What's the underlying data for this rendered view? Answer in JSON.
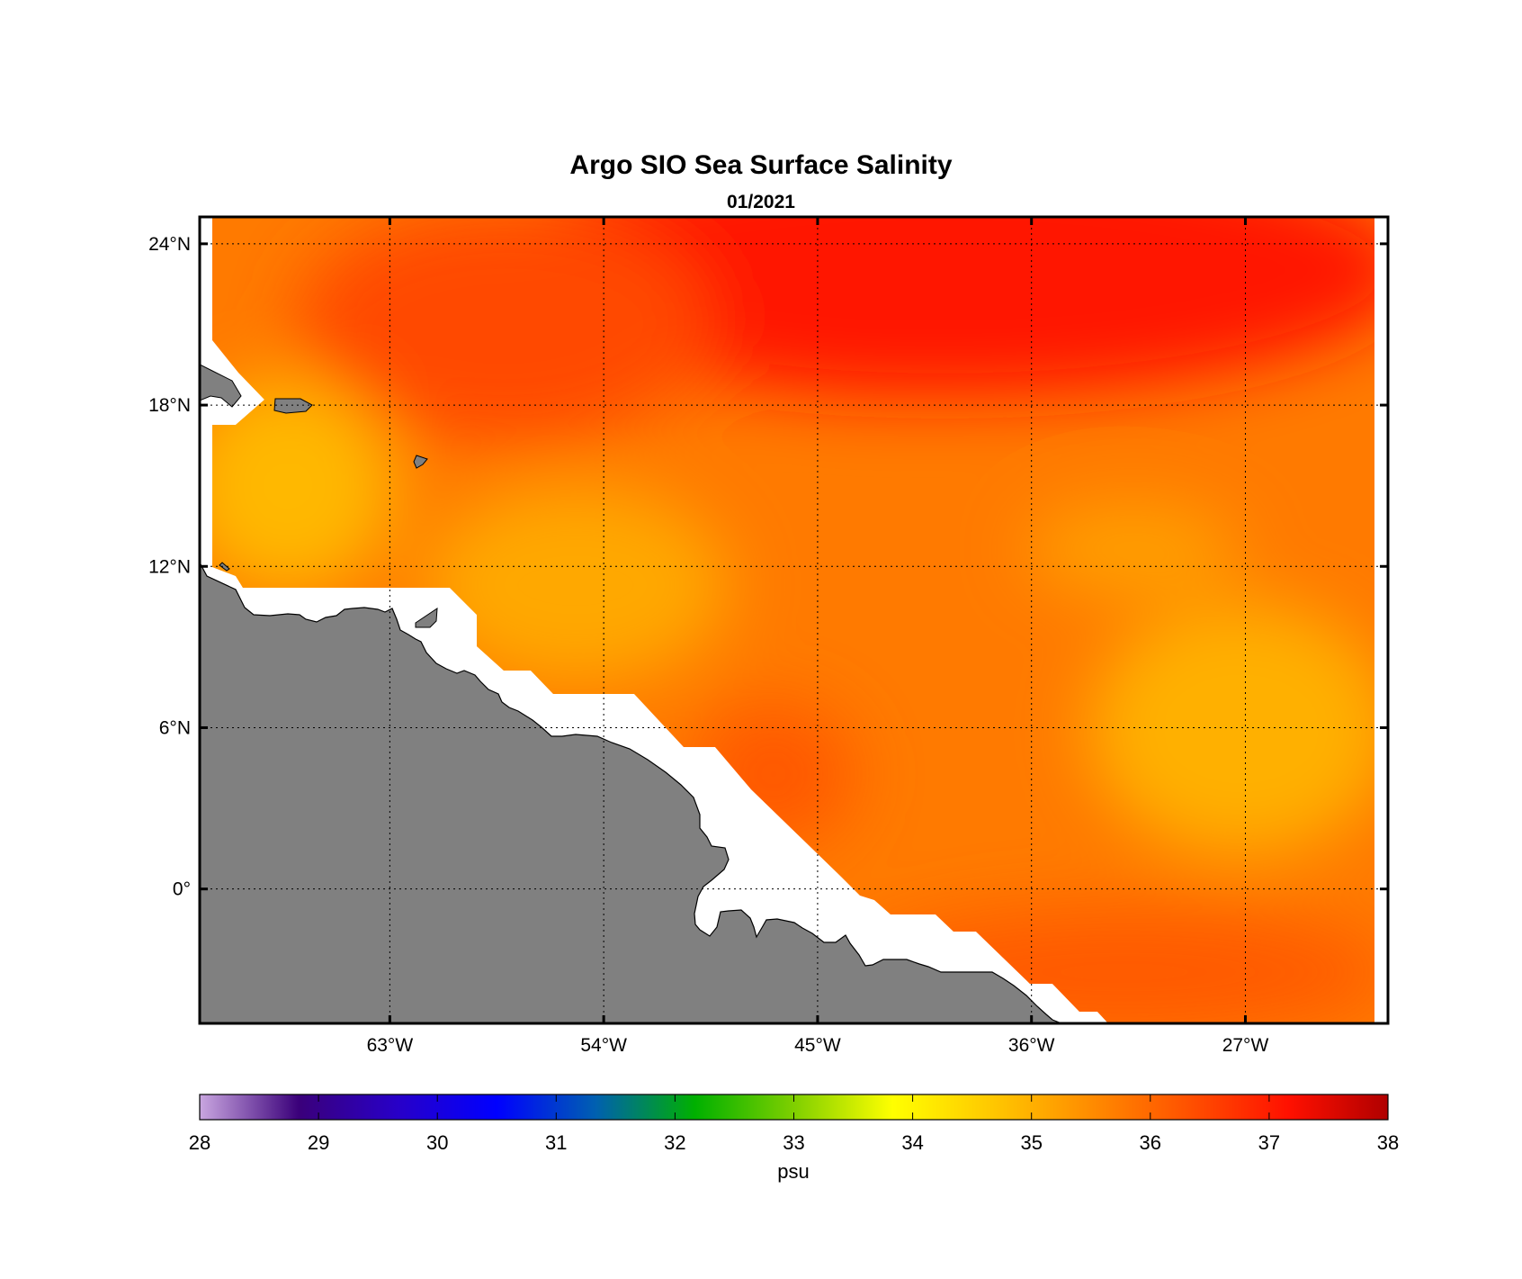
{
  "title": "Argo SIO Sea Surface Salinity",
  "subtitle": "01/2021",
  "map": {
    "lon_range": [
      -71,
      -21
    ],
    "lat_range": [
      -5,
      25
    ],
    "lon_ticks": [
      {
        "value": -63,
        "label": "63°W"
      },
      {
        "value": -54,
        "label": "54°W"
      },
      {
        "value": -45,
        "label": "45°W"
      },
      {
        "value": -36,
        "label": "36°W"
      },
      {
        "value": -27,
        "label": "27°W"
      }
    ],
    "lat_ticks": [
      {
        "value": 24,
        "label": "24°N"
      },
      {
        "value": 18,
        "label": "18°N"
      },
      {
        "value": 12,
        "label": "12°N"
      },
      {
        "value": 6,
        "label": "6°N"
      },
      {
        "value": 0,
        "label": "0°"
      }
    ],
    "grid": true,
    "land_color": "#808080",
    "nodata_color": "#ffffff"
  },
  "colorbar": {
    "unit": "psu",
    "min": 28,
    "max": 38,
    "ticks": [
      "28",
      "29",
      "30",
      "31",
      "32",
      "33",
      "34",
      "35",
      "36",
      "37",
      "38"
    ],
    "colors": [
      "#c9a6e0",
      "#3a007a",
      "#2800c8",
      "#0000ff",
      "#0060b0",
      "#00b000",
      "#7fcf00",
      "#ffff00",
      "#ffc800",
      "#ff8c00",
      "#ff5000",
      "#ff1000",
      "#b00000"
    ]
  },
  "chart_data": {
    "type": "heatmap",
    "title": "Argo SIO Sea Surface Salinity",
    "subtitle": "01/2021",
    "xlabel": "",
    "ylabel": "",
    "x_range_lon": [
      -71,
      -21
    ],
    "y_range_lat": [
      -5,
      25
    ],
    "colorbar_range": [
      28,
      38
    ],
    "colorbar_unit": "psu",
    "salinity_regions": [
      {
        "area": "north of 20°N, 55°W–30°W",
        "approx_psu": 37.3
      },
      {
        "area": "18°N–20°N, 60°W–25°W",
        "approx_psu": 36.8
      },
      {
        "area": "12°N–17°N, 70°W–64°W",
        "approx_psu": 35.3
      },
      {
        "area": "11°N–14°N, 56°W–50°W",
        "approx_psu": 34.9
      },
      {
        "area": "2°N–10°N, 40°W–22°W",
        "approx_psu": 35.6
      },
      {
        "area": "0°–6°N, 50°W–40°W",
        "approx_psu": 36.2
      },
      {
        "area": "4°S–0°, 45°W–24°W",
        "approx_psu": 36.3
      }
    ]
  }
}
